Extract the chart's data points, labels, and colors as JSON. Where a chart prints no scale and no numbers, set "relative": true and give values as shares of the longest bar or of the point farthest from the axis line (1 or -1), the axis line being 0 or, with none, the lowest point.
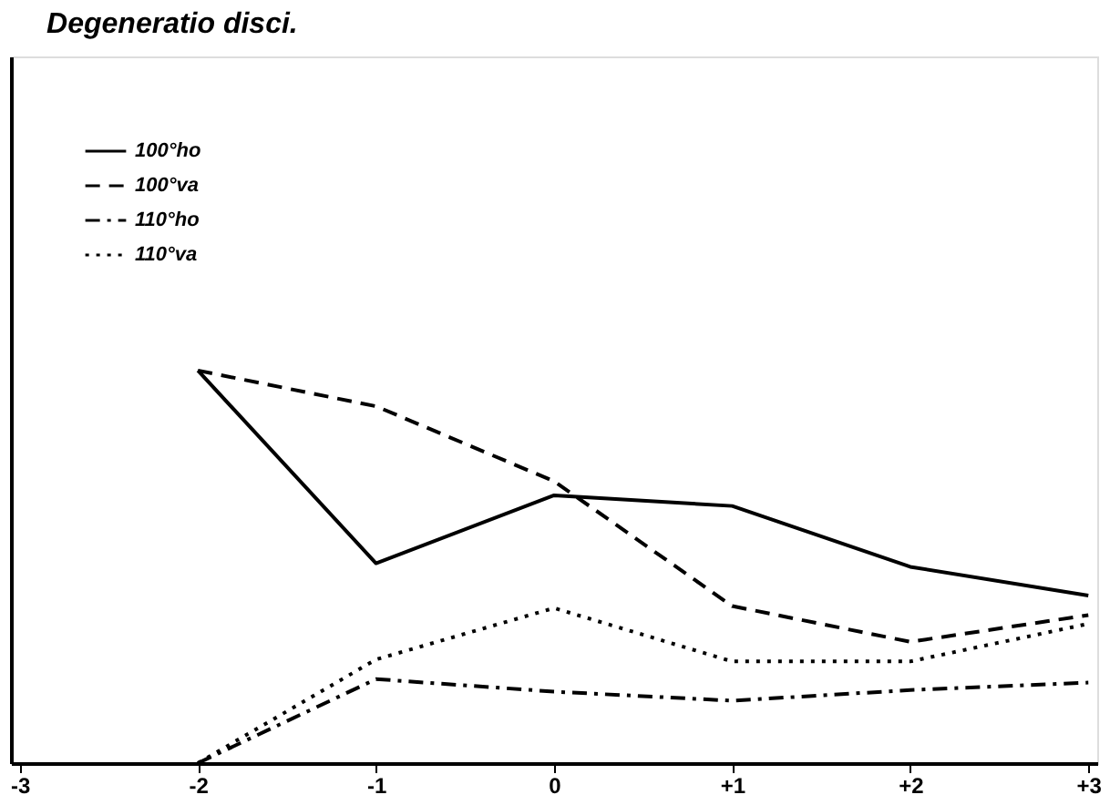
{
  "chart_data": {
    "type": "line",
    "title": "Degeneratio disci.",
    "relative": true,
    "categories": [
      "-3",
      "-2",
      "-1",
      "0",
      "+1",
      "+2",
      "+3"
    ],
    "legend": "top left",
    "grid": false,
    "marker": "none",
    "series": [
      {
        "name": "100°ho",
        "color": "#000000",
        "line_style": "solid",
        "values": [
          null,
          1,
          0.509,
          0.682,
          0.655,
          0.5,
          0.427
        ]
      },
      {
        "name": "100°va",
        "color": "#000000",
        "line_style": "dashed",
        "values": [
          null,
          1,
          0.909,
          0.718,
          0.4,
          0.309,
          0.377
        ]
      },
      {
        "name": "110°ho",
        "color": "#000000",
        "line_style": "dashdot",
        "values": [
          null,
          0,
          0.214,
          0.182,
          0.159,
          0.186,
          0.205
        ]
      },
      {
        "name": "110°va",
        "color": "#000000",
        "line_style": "dotted",
        "values": [
          null,
          0,
          0.264,
          0.395,
          0.259,
          0.259,
          0.355
        ]
      }
    ]
  }
}
